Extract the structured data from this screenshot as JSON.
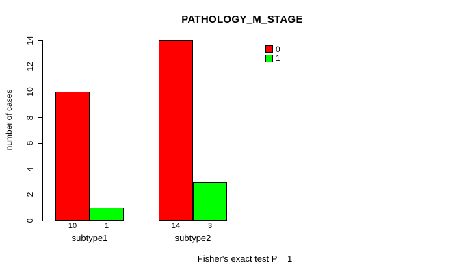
{
  "title": "PATHOLOGY_M_STAGE",
  "chart_data": {
    "type": "bar",
    "title": "PATHOLOGY_M_STAGE",
    "xlabel": "",
    "ylabel": "number of cases",
    "categories": [
      "subtype1",
      "subtype2"
    ],
    "series": [
      {
        "name": "0",
        "color": "#FF0000",
        "values": [
          10,
          14
        ]
      },
      {
        "name": "1",
        "color": "#00FF00",
        "values": [
          1,
          3
        ]
      }
    ],
    "bar_count_labels": [
      [
        "10",
        "1"
      ],
      [
        "14",
        "3"
      ]
    ],
    "ylim": [
      0,
      14
    ],
    "yticks": [
      0,
      2,
      4,
      6,
      8,
      10,
      12,
      14
    ],
    "grid": false,
    "legend_position": "top-right",
    "legend_entries": [
      {
        "label": "0",
        "color": "#FF0000"
      },
      {
        "label": "1",
        "color": "#00FF00"
      }
    ],
    "annotation": "Fisher's exact test P = 1"
  }
}
